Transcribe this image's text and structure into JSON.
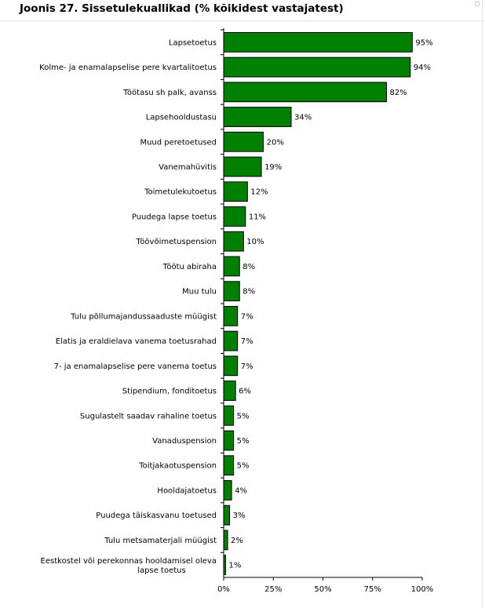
{
  "chart_data": {
    "type": "bar",
    "orientation": "horizontal",
    "title": "Joonis 27. Sissetulekuallikad (% kõikidest vastajatest)",
    "categories": [
      "Lapsetoetus",
      "Kolme- ja enamalapselise pere kvartalitoetus",
      "Töötasu sh palk, avanss",
      "Lapsehooldustasu",
      "Muud peretoetused",
      "Vanemahüvitis",
      "Toimetulekutoetus",
      "Puudega lapse toetus",
      "Töövõimetuspension",
      "Töötu abiraha",
      "Muu tulu",
      "Tulu põllumajandussaaduste müügist",
      "Elatis ja eraldielava vanema toetusrahad",
      "7- ja enamalapselise pere vanema toetus",
      "Stipendium, fonditoetus",
      "Sugulastelt saadav rahaline toetus",
      "Vanaduspension",
      "Toitjakaotuspension",
      "Hooldajatoetus",
      "Puudega täiskasvanu toetused",
      "Tulu metsamaterjali müügist",
      "Eestkostel või perekonnas hooldamisel oleva lapse toetus"
    ],
    "values": [
      95,
      94,
      82,
      34,
      20,
      19,
      12,
      11,
      10,
      8,
      8,
      7,
      7,
      7,
      6,
      5,
      5,
      5,
      4,
      3,
      2,
      1
    ],
    "value_labels": [
      "95%",
      "94%",
      "82%",
      "34%",
      "20%",
      "19%",
      "12%",
      "11%",
      "10%",
      "8%",
      "8%",
      "7%",
      "7%",
      "7%",
      "6%",
      "5%",
      "5%",
      "5%",
      "4%",
      "3%",
      "2%",
      "1%"
    ],
    "xlim": [
      0,
      100
    ],
    "x_ticks": [
      0,
      25,
      50,
      75,
      100
    ],
    "x_tick_labels": [
      "0%",
      "25%",
      "50%",
      "75%",
      "100%"
    ],
    "grid": false,
    "legend": "none",
    "bar_color": "#008000",
    "bar_edge_color": "#000000"
  }
}
